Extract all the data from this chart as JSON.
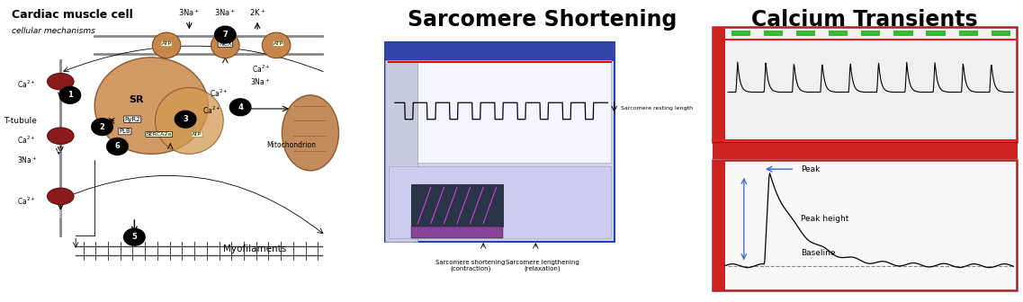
{
  "title_sarcomere": "Sarcomere Shortening",
  "title_calcium": "Calcium Transients",
  "title_cell": "Cardiac muscle cell",
  "subtitle_cell": "cellular mechanisms",
  "bg_color": "#ffffff",
  "left_panel_bg": "#f2edcf",
  "title_fontsize": 17,
  "title_fontweight": "bold",
  "annotations_sarcomere": {
    "resting_length": "Sarcomere resting length",
    "shortening": "Sarcomere shortening\n(contraction)",
    "lengthening": "Sarcomere lengthening\n(relaxation)"
  },
  "annotations_calcium": {
    "peak": "Peak",
    "peak_height": "Peak height",
    "baseline": "Baseline"
  },
  "colors": {
    "sr_fill": "#c8874a",
    "sr_edge": "#7a4a20",
    "mito_fill": "#b87840",
    "mito_edge": "#7a4a20",
    "ca_oval_fill": "#8b1a1a",
    "ca_oval_edge": "#5a0f0f",
    "membrane_gray": "#999999",
    "arrow_black": "#000000",
    "red_line": "#cc0000",
    "green_bar": "#33aa33",
    "blue_annot": "#3366cc"
  }
}
